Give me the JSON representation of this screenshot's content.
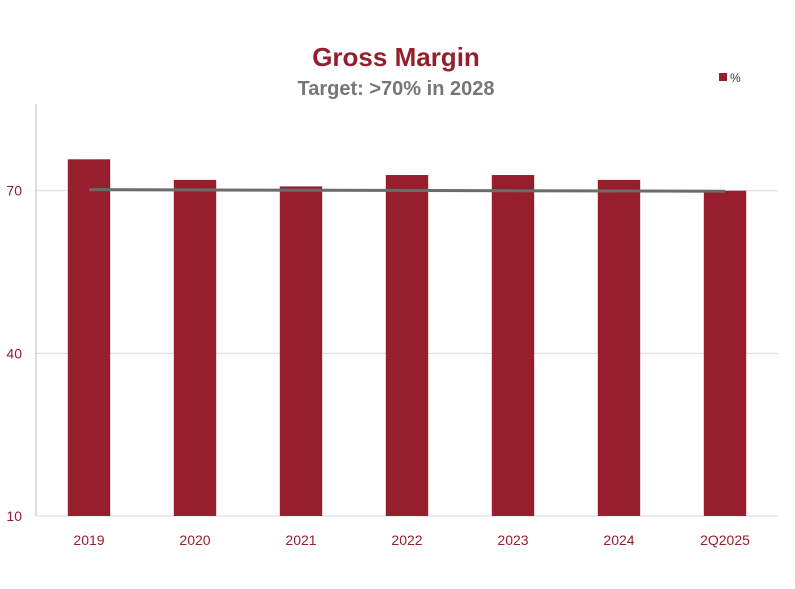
{
  "chart_data": {
    "type": "bar",
    "title": "Gross Margin",
    "subtitle": "Target: >70% in 2028",
    "categories": [
      "2019",
      "2020",
      "2021",
      "2022",
      "2023",
      "2024",
      "2Q2025"
    ],
    "series": [
      {
        "name": "%",
        "values": [
          75.8,
          72.0,
          70.8,
          72.9,
          72.9,
          72.0,
          70.0
        ]
      }
    ],
    "target_line": {
      "x_start": "2019",
      "x_end": "2Q2025",
      "y_start": 70.2,
      "y_end": 69.9
    },
    "yticks": [
      10,
      40,
      70
    ],
    "ylim": [
      10,
      86
    ],
    "grid": true,
    "legend_position": "top-right",
    "xlabel": "",
    "ylabel": ""
  },
  "colors": {
    "bar": "#961E2D",
    "title": "#961E2D",
    "subtitle": "#767676",
    "target_line": "#6B6B6B",
    "tick_label_x": "#961E2D",
    "tick_label_y": "#961E2D",
    "gridline": "#D9D9D9",
    "axis": "#BFBFBF"
  }
}
